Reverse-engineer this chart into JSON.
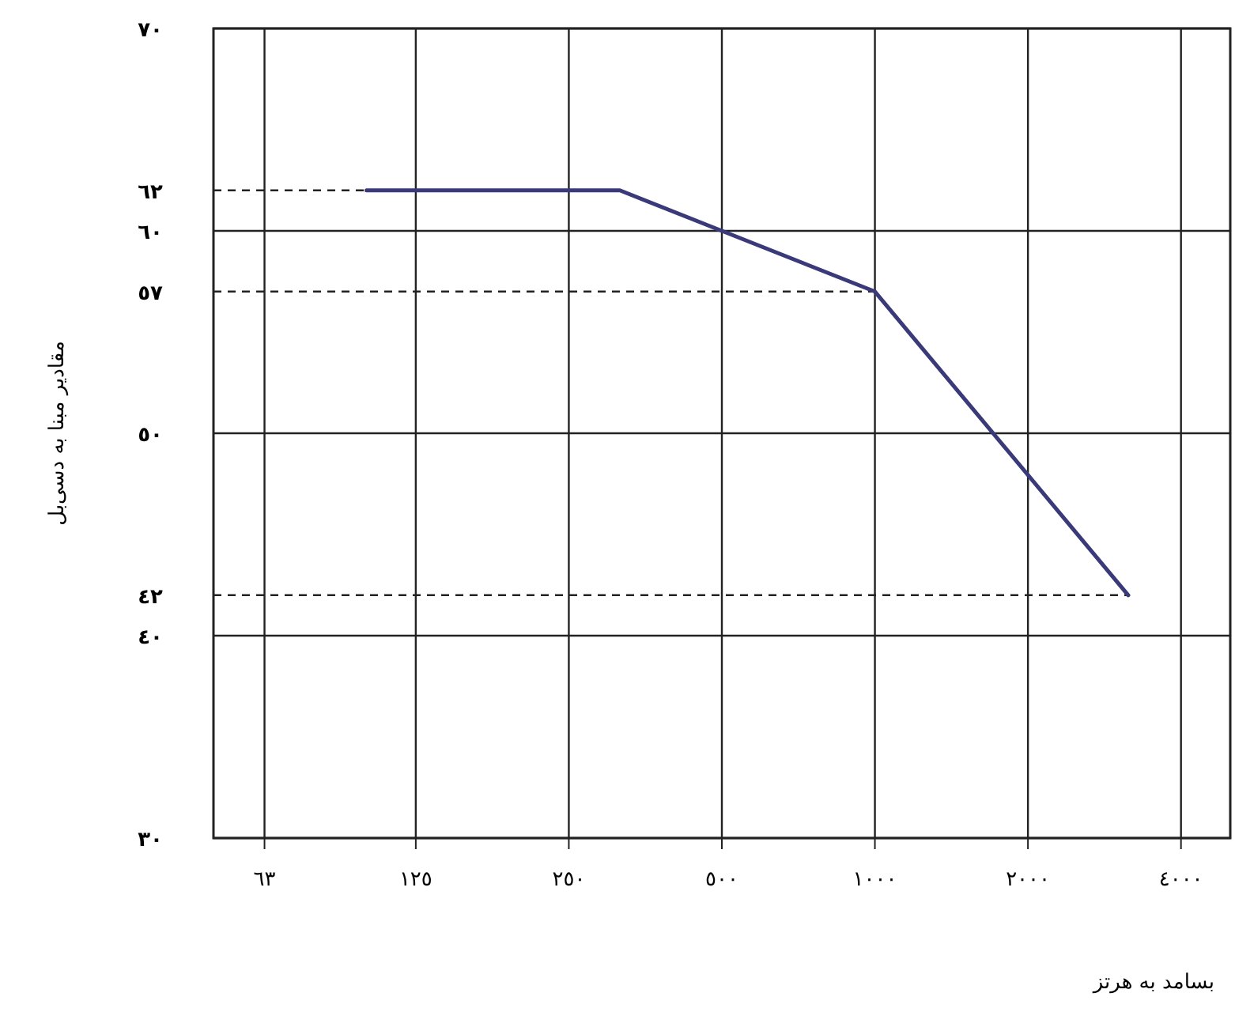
{
  "chart_data": {
    "type": "line",
    "xlabel": "بسامد به هرتز",
    "ylabel": "مقادیر مبنا به دسی‌بل",
    "x": [
      100,
      315,
      500,
      1000,
      3150
    ],
    "series": [
      {
        "color": "#3a3a7a",
        "values": [
          62,
          62,
          60,
          57,
          42
        ]
      }
    ],
    "log": "x",
    "xlim": [
      50,
      5000
    ],
    "xticks": [
      {
        "value": 63,
        "label": "٦٣"
      },
      {
        "value": 125,
        "label": "١٢٥"
      },
      {
        "value": 250,
        "label": "٢٥٠"
      },
      {
        "value": 500,
        "label": "٥٠٠"
      },
      {
        "value": 1000,
        "label": "١٠٠٠"
      },
      {
        "value": 2000,
        "label": "٢٠٠٠"
      },
      {
        "value": 4000,
        "label": "٤٠٠٠"
      }
    ],
    "ylim": [
      30,
      70
    ],
    "yticks": [
      {
        "value": 30,
        "label": "٣٠"
      },
      {
        "value": 40,
        "label": "٤٠"
      },
      {
        "value": 50,
        "label": "٥٠"
      },
      {
        "value": 60,
        "label": "٦٠"
      },
      {
        "value": 70,
        "label": "٧٠"
      }
    ],
    "ref_lines": [
      {
        "axis": "y",
        "value": 62,
        "label": "٦٢",
        "line_style": "dashed"
      },
      {
        "axis": "y",
        "value": 57,
        "label": "٥٧",
        "line_style": "dashed"
      },
      {
        "axis": "y",
        "value": 42,
        "label": "٤٢",
        "line_style": "dashed"
      }
    ],
    "grid": true,
    "marker": "none",
    "line_style": "solid"
  }
}
